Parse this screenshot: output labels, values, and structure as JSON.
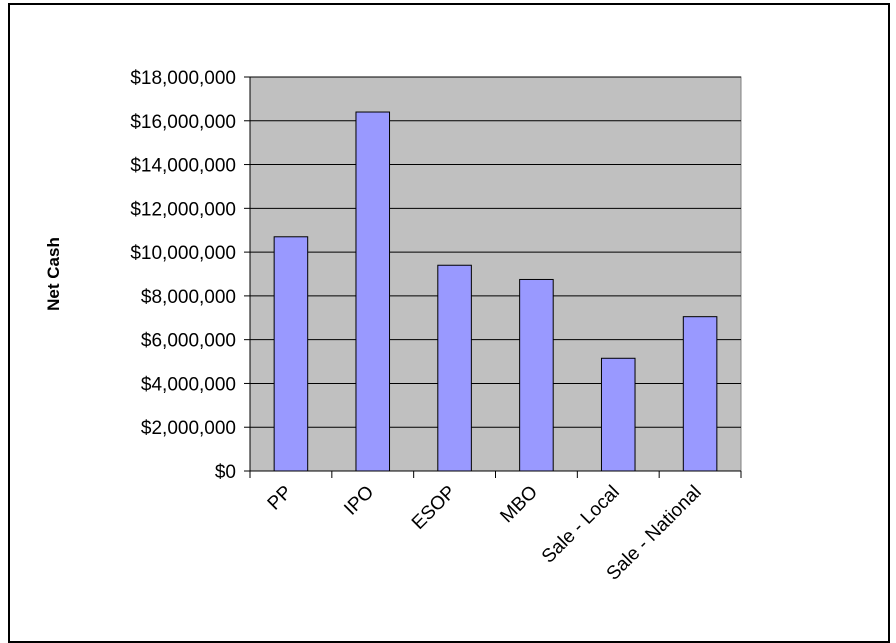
{
  "chart_data": {
    "type": "bar",
    "title": "",
    "xlabel": "",
    "ylabel": "Net Cash",
    "categories": [
      "PP",
      "IPO",
      "ESOP",
      "MBO",
      "Sale - Local",
      "Sale - National"
    ],
    "values": [
      10700000,
      16400000,
      9400000,
      8750000,
      5150000,
      7050000
    ],
    "ylim": [
      0,
      18000000
    ],
    "y_ticks": [
      0,
      2000000,
      4000000,
      6000000,
      8000000,
      10000000,
      12000000,
      14000000,
      16000000,
      18000000
    ],
    "y_tick_labels": [
      "$0",
      "$2,000,000",
      "$4,000,000",
      "$6,000,000",
      "$8,000,000",
      "$10,000,000",
      "$12,000,000",
      "$14,000,000",
      "$16,000,000",
      "$18,000,000"
    ],
    "grid": true,
    "legend": "none",
    "colors": {
      "bar_fill": "#9999ff",
      "plot_background": "#c0c0c0",
      "gridline": "#000000",
      "frame_border": "#000000"
    }
  }
}
